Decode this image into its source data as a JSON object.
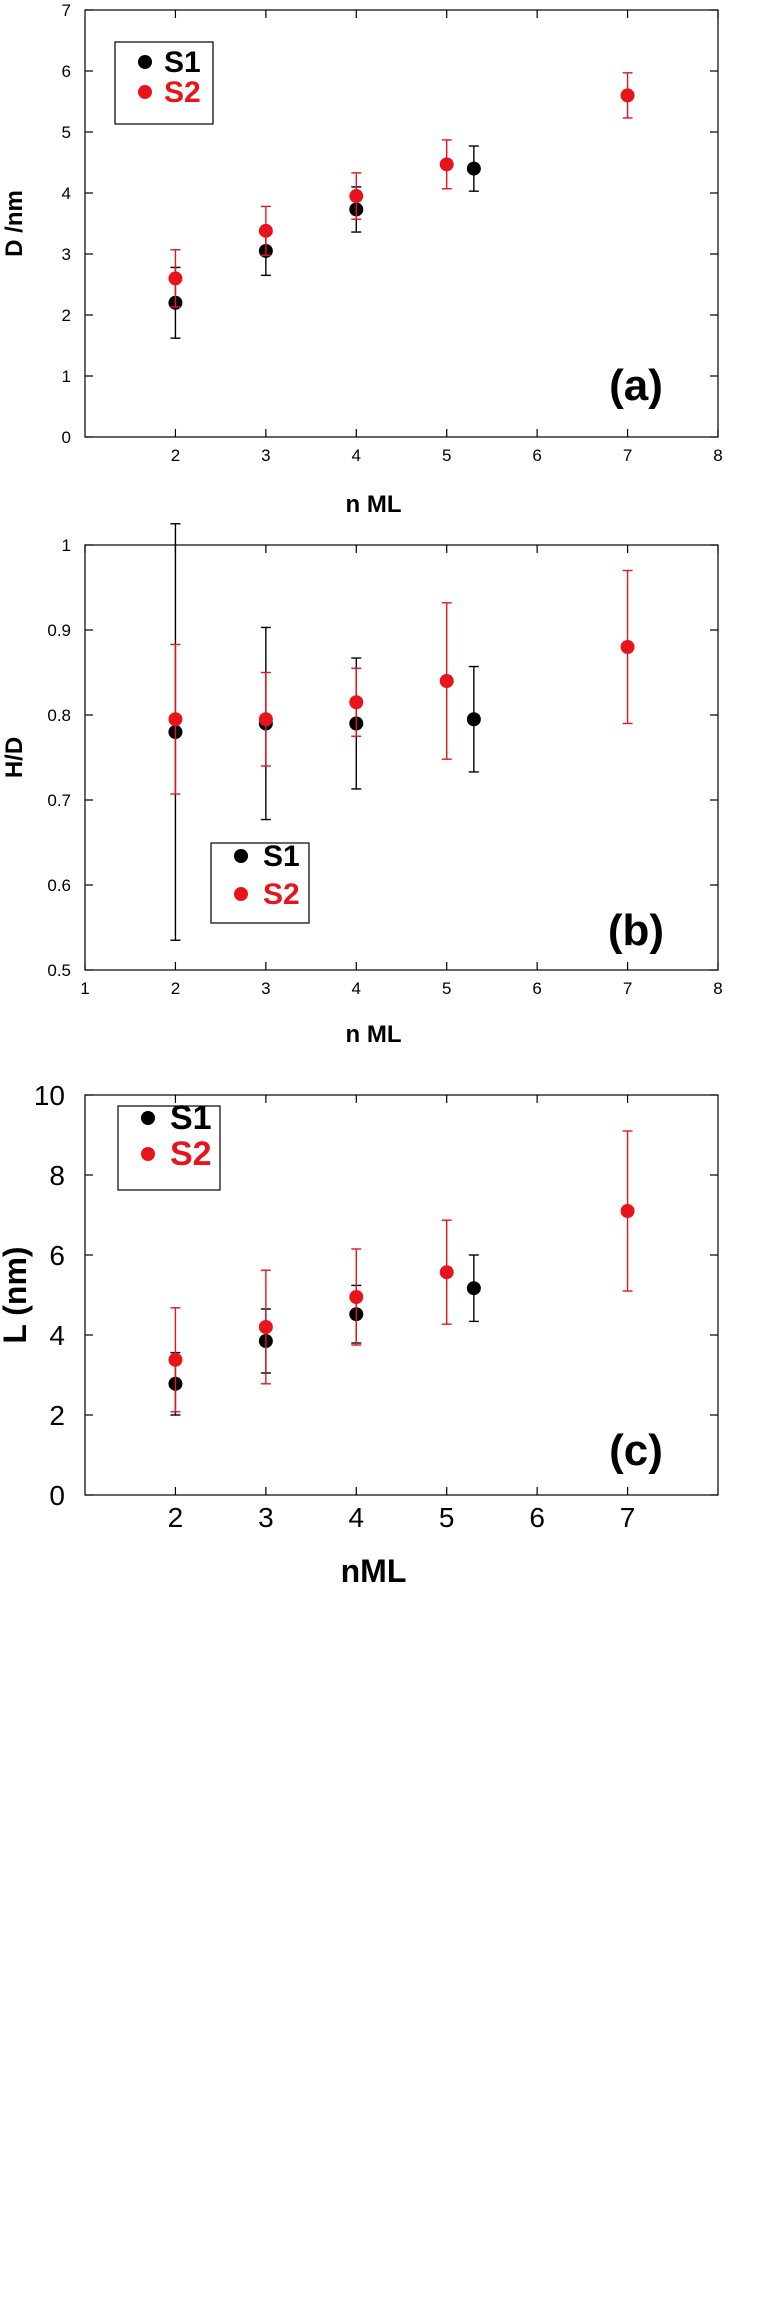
{
  "colors": {
    "S1": "#000000",
    "S2": "#e8141c"
  },
  "chart_data": [
    {
      "type": "scatter",
      "panel_label": "(a)",
      "xlabel": "n ML",
      "ylabel": "D /nm",
      "xlim": [
        1,
        8
      ],
      "ylim": [
        0,
        7
      ],
      "xticks": [
        2,
        3,
        4,
        5,
        6,
        7,
        8
      ],
      "yticks": [
        0,
        1,
        2,
        3,
        4,
        5,
        6,
        7
      ],
      "legend": {
        "placement": "top-left",
        "entries": [
          "S1",
          "S2"
        ]
      },
      "series": [
        {
          "name": "S1",
          "color": "#000000",
          "points": [
            {
              "x": 2,
              "y": 2.2,
              "err": 0.58
            },
            {
              "x": 3,
              "y": 3.05,
              "err": 0.4
            },
            {
              "x": 4,
              "y": 3.73,
              "err": 0.37
            },
            {
              "x": 5.3,
              "y": 4.4,
              "err": 0.37
            }
          ]
        },
        {
          "name": "S2",
          "color": "#e8141c",
          "points": [
            {
              "x": 2,
              "y": 2.6,
              "err": 0.47
            },
            {
              "x": 3,
              "y": 3.38,
              "err": 0.4
            },
            {
              "x": 4,
              "y": 3.95,
              "err": 0.38
            },
            {
              "x": 5,
              "y": 4.47,
              "err": 0.4
            },
            {
              "x": 7,
              "y": 5.6,
              "err": 0.37
            }
          ]
        }
      ]
    },
    {
      "type": "scatter",
      "panel_label": "(b)",
      "xlabel": "n ML",
      "ylabel": "H/D",
      "xlim": [
        1,
        8
      ],
      "ylim": [
        0.5,
        1
      ],
      "xticks": [
        1,
        2,
        3,
        4,
        5,
        6,
        7,
        8
      ],
      "yticks": [
        0.5,
        0.6,
        0.7,
        0.8,
        0.9,
        1
      ],
      "legend": {
        "placement": "bottom-center",
        "entries": [
          "S1",
          "S2"
        ]
      },
      "series": [
        {
          "name": "S1",
          "color": "#000000",
          "points": [
            {
              "x": 2,
              "y": 0.78,
              "err": 0.245
            },
            {
              "x": 3,
              "y": 0.79,
              "err": 0.113
            },
            {
              "x": 4,
              "y": 0.79,
              "err": 0.077
            },
            {
              "x": 5.3,
              "y": 0.795,
              "err": 0.062
            }
          ]
        },
        {
          "name": "S2",
          "color": "#e8141c",
          "points": [
            {
              "x": 2,
              "y": 0.795,
              "err": 0.088
            },
            {
              "x": 3,
              "y": 0.795,
              "err": 0.055
            },
            {
              "x": 4,
              "y": 0.815,
              "err": 0.04
            },
            {
              "x": 5,
              "y": 0.84,
              "err": 0.092
            },
            {
              "x": 7,
              "y": 0.88,
              "err": 0.09
            }
          ]
        }
      ]
    },
    {
      "type": "scatter",
      "panel_label": "(c)",
      "xlabel": "nML",
      "ylabel": "L (nm)",
      "xlim": [
        1,
        8
      ],
      "ylim": [
        0,
        10
      ],
      "xticks": [
        2,
        3,
        4,
        5,
        6,
        7
      ],
      "yticks": [
        0,
        2,
        4,
        6,
        8,
        10
      ],
      "legend": {
        "placement": "top-left",
        "entries": [
          "S1",
          "S2"
        ]
      },
      "series": [
        {
          "name": "S1",
          "color": "#000000",
          "points": [
            {
              "x": 2,
              "y": 2.78,
              "err": 0.78
            },
            {
              "x": 3,
              "y": 3.85,
              "err": 0.8
            },
            {
              "x": 4,
              "y": 4.52,
              "err": 0.72
            },
            {
              "x": 5.3,
              "y": 5.17,
              "err": 0.83
            }
          ]
        },
        {
          "name": "S2",
          "color": "#e8141c",
          "points": [
            {
              "x": 2,
              "y": 3.38,
              "err": 1.3
            },
            {
              "x": 3,
              "y": 4.2,
              "err": 1.42
            },
            {
              "x": 4,
              "y": 4.95,
              "err": 1.2
            },
            {
              "x": 5,
              "y": 5.57,
              "err": 1.3
            },
            {
              "x": 7,
              "y": 7.1,
              "err": 2.0
            }
          ]
        }
      ]
    }
  ]
}
